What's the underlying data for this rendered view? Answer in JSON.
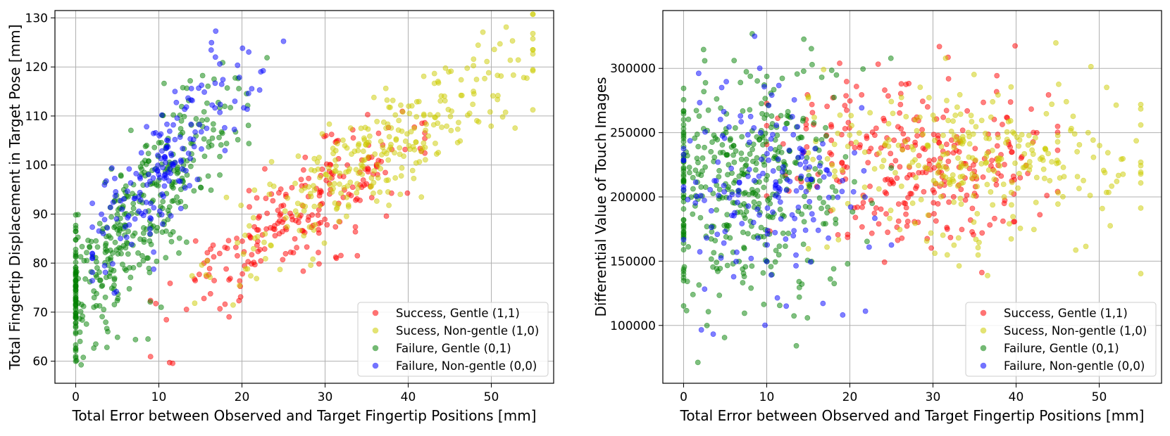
{
  "chart_data": [
    {
      "type": "scatter",
      "xlabel": "Total Error between Observed and Target Fingertip Positions [mm]",
      "ylabel": "Total Fingertip Displacement in Target Pose [mm]",
      "xlim": [
        -2.5,
        57.5
      ],
      "ylim": [
        55.5,
        131.5
      ],
      "xticks": [
        0,
        10,
        20,
        30,
        40,
        50
      ],
      "yticks": [
        60,
        70,
        80,
        90,
        100,
        110,
        120,
        130
      ],
      "ytick_labels": [
        "60",
        "70",
        "80",
        "90",
        "100",
        "110",
        "120",
        "130"
      ],
      "grid": true,
      "legend_loc": "lower-right",
      "series": [
        {
          "name": "Success, Gentle (1,1)",
          "color": "#ff0000",
          "count": 230,
          "x_range": [
            9,
            42
          ],
          "x_center": 27,
          "slope": 1.05,
          "y_at_center": 90,
          "y_spread": 5
        },
        {
          "name": "Sucess, Non-gentle (1,0)",
          "color": "#cccc00",
          "count": 300,
          "x_range": [
            14,
            55
          ],
          "x_center": 37,
          "slope": 1.05,
          "y_at_center": 103,
          "y_spread": 5.5
        },
        {
          "name": "Failure, Gentle (0,1)",
          "color": "#008000",
          "count": 420,
          "x_range": [
            0,
            27
          ],
          "x_center": 7,
          "slope": 2.0,
          "y_at_center": 88,
          "y_spread": 8
        },
        {
          "name": "Failure, Non-gentle (0,0)",
          "color": "#0000ff",
          "count": 180,
          "x_range": [
            2,
            25
          ],
          "x_center": 11,
          "slope": 2.0,
          "y_at_center": 100,
          "y_spread": 6
        }
      ]
    },
    {
      "type": "scatter",
      "xlabel": "Total Error between Observed and Target Fingertip Positions [mm]",
      "ylabel": "Differential Value of Touch Images",
      "xlim": [
        -2.5,
        57.5
      ],
      "ylim": [
        55000,
        345000
      ],
      "xticks": [
        0,
        10,
        20,
        30,
        40,
        50
      ],
      "yticks": [
        100000,
        150000,
        200000,
        250000,
        300000
      ],
      "ytick_labels": [
        "100000",
        "150000",
        "200000",
        "250000",
        "300000"
      ],
      "grid": true,
      "legend_loc": "lower-right",
      "series": [
        {
          "name": "Success, Gentle (1,1)",
          "color": "#ff0000",
          "count": 300,
          "x_range": [
            10,
            45
          ],
          "x_center": 28,
          "slope": 0,
          "y_at_center": 230000,
          "y_spread": 35000
        },
        {
          "name": "Sucess, Non-gentle (1,0)",
          "color": "#cccc00",
          "count": 300,
          "x_range": [
            15,
            55
          ],
          "x_center": 36,
          "slope": 0,
          "y_at_center": 225000,
          "y_spread": 30000
        },
        {
          "name": "Failure, Gentle (0,1)",
          "color": "#008000",
          "count": 420,
          "x_range": [
            0,
            27
          ],
          "x_center": 7,
          "slope": 0,
          "y_at_center": 210000,
          "y_spread": 45000
        },
        {
          "name": "Failure, Non-gentle (0,0)",
          "color": "#0000ff",
          "count": 180,
          "x_range": [
            0,
            25
          ],
          "x_center": 10,
          "slope": 0,
          "y_at_center": 205000,
          "y_spread": 40000
        }
      ]
    }
  ]
}
